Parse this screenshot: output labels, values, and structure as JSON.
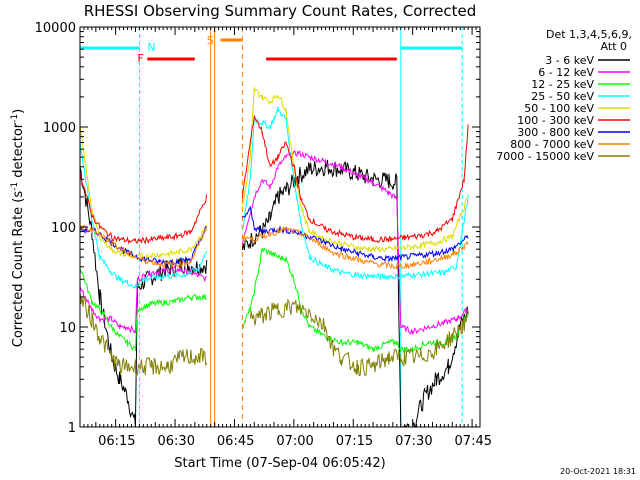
{
  "chart_data": {
    "type": "line",
    "title": "RHESSI Observing Summary Count Rates, Corrected",
    "xlabel": "Start Time (07-Sep-04 06:05:42)",
    "ylabel_main": "Corrected Count Rate (s",
    "ylabel_exp1": "-1",
    "ylabel_mid": " detector",
    "ylabel_exp2": "-1",
    "ylabel_end": ")",
    "y_scale": "log",
    "ylim": [
      1,
      10000
    ],
    "xlim_minutes": [
      0,
      101
    ],
    "x_ticks": [
      {
        "m": 9.3,
        "label": "06:15"
      },
      {
        "m": 24.3,
        "label": "06:30"
      },
      {
        "m": 39.3,
        "label": "06:45"
      },
      {
        "m": 54.3,
        "label": "07:00"
      },
      {
        "m": 69.3,
        "label": "07:15"
      },
      {
        "m": 84.3,
        "label": "07:30"
      },
      {
        "m": 99.3,
        "label": "07:45"
      }
    ],
    "y_ticks": [
      {
        "v": 1,
        "label": "1"
      },
      {
        "v": 10,
        "label": "10"
      },
      {
        "v": 100,
        "label": "100"
      },
      {
        "v": 1000,
        "label": "1000"
      },
      {
        "v": 10000,
        "label": "10000"
      }
    ],
    "legend": {
      "header1": "Det 1,3,4,5,6,9,",
      "header2": "Att 0",
      "position": "right"
    },
    "series": [
      {
        "name": "3 - 6 keV",
        "color": "#000000",
        "points": [
          [
            0,
            400
          ],
          [
            3,
            90
          ],
          [
            5,
            20
          ],
          [
            8,
            5
          ],
          [
            10,
            3
          ],
          [
            12,
            2
          ],
          [
            14,
            1
          ],
          [
            14.5,
            25
          ],
          [
            17,
            30
          ],
          [
            22,
            38
          ],
          [
            26,
            42
          ],
          [
            30,
            40
          ],
          [
            32,
            42
          ],
          [
            33,
            null
          ],
          [
            41,
            null
          ],
          [
            41,
            60
          ],
          [
            44,
            80
          ],
          [
            46,
            90
          ],
          [
            48,
            120
          ],
          [
            50,
            200
          ],
          [
            52,
            230
          ],
          [
            55,
            320
          ],
          [
            58,
            380
          ],
          [
            62,
            400
          ],
          [
            66,
            380
          ],
          [
            70,
            340
          ],
          [
            74,
            300
          ],
          [
            78,
            290
          ],
          [
            80,
            280
          ],
          [
            81,
            1
          ],
          [
            84,
            1
          ],
          [
            87,
            2
          ],
          [
            90,
            3
          ],
          [
            93,
            4
          ],
          [
            96,
            10
          ],
          [
            98,
            15
          ]
        ]
      },
      {
        "name": "6 - 12 keV",
        "color": "#ff00ff",
        "points": [
          [
            0,
            25
          ],
          [
            3,
            15
          ],
          [
            5,
            12
          ],
          [
            8,
            12
          ],
          [
            10,
            10
          ],
          [
            12,
            10
          ],
          [
            14,
            9
          ],
          [
            14.5,
            30
          ],
          [
            18,
            35
          ],
          [
            24,
            38
          ],
          [
            28,
            35
          ],
          [
            32,
            30
          ],
          [
            33,
            null
          ],
          [
            41,
            null
          ],
          [
            41,
            70
          ],
          [
            44,
            200
          ],
          [
            46,
            300
          ],
          [
            48,
            250
          ],
          [
            50,
            400
          ],
          [
            52,
            500
          ],
          [
            55,
            550
          ],
          [
            58,
            500
          ],
          [
            62,
            450
          ],
          [
            66,
            400
          ],
          [
            70,
            330
          ],
          [
            74,
            280
          ],
          [
            78,
            220
          ],
          [
            80,
            190
          ],
          [
            81,
            10
          ],
          [
            84,
            9
          ],
          [
            88,
            10
          ],
          [
            92,
            11
          ],
          [
            95,
            12
          ],
          [
            98,
            15
          ]
        ]
      },
      {
        "name": "12 - 25 keV",
        "color": "#00ff00",
        "points": [
          [
            0,
            40
          ],
          [
            3,
            18
          ],
          [
            5,
            15
          ],
          [
            8,
            10
          ],
          [
            10,
            8
          ],
          [
            12,
            7
          ],
          [
            14,
            6
          ],
          [
            14.5,
            15
          ],
          [
            18,
            17
          ],
          [
            24,
            18
          ],
          [
            28,
            20
          ],
          [
            32,
            20
          ],
          [
            33,
            null
          ],
          [
            41,
            null
          ],
          [
            41,
            10
          ],
          [
            43,
            15
          ],
          [
            45,
            35
          ],
          [
            46,
            60
          ],
          [
            48,
            55
          ],
          [
            50,
            50
          ],
          [
            52,
            48
          ],
          [
            54,
            30
          ],
          [
            56,
            15
          ],
          [
            58,
            10
          ],
          [
            62,
            8
          ],
          [
            66,
            7
          ],
          [
            70,
            7
          ],
          [
            74,
            6
          ],
          [
            78,
            7
          ],
          [
            80,
            7
          ],
          [
            81,
            6
          ],
          [
            84,
            6
          ],
          [
            88,
            7
          ],
          [
            92,
            7
          ],
          [
            95,
            8
          ],
          [
            98,
            14
          ]
        ]
      },
      {
        "name": "25 - 50 keV",
        "color": "#00ffff",
        "points": [
          [
            0,
            700
          ],
          [
            3,
            120
          ],
          [
            5,
            50
          ],
          [
            8,
            35
          ],
          [
            10,
            30
          ],
          [
            12,
            28
          ],
          [
            14,
            25
          ],
          [
            16,
            30
          ],
          [
            20,
            32
          ],
          [
            26,
            33
          ],
          [
            30,
            38
          ],
          [
            32,
            60
          ],
          [
            33,
            null
          ],
          [
            41,
            null
          ],
          [
            41,
            90
          ],
          [
            43,
            300
          ],
          [
            44,
            1200
          ],
          [
            46,
            1100
          ],
          [
            48,
            1000
          ],
          [
            50,
            1500
          ],
          [
            52,
            1200
          ],
          [
            54,
            300
          ],
          [
            56,
            100
          ],
          [
            58,
            50
          ],
          [
            62,
            40
          ],
          [
            66,
            35
          ],
          [
            70,
            33
          ],
          [
            74,
            32
          ],
          [
            78,
            32
          ],
          [
            80,
            32
          ],
          [
            84,
            33
          ],
          [
            88,
            34
          ],
          [
            92,
            35
          ],
          [
            95,
            40
          ],
          [
            98,
            200
          ]
        ]
      },
      {
        "name": "50 - 100 keV",
        "color": "#dddd00",
        "points": [
          [
            0,
            1000
          ],
          [
            3,
            150
          ],
          [
            5,
            80
          ],
          [
            8,
            60
          ],
          [
            10,
            55
          ],
          [
            14,
            50
          ],
          [
            18,
            52
          ],
          [
            24,
            55
          ],
          [
            28,
            60
          ],
          [
            32,
            100
          ],
          [
            33,
            null
          ],
          [
            41,
            null
          ],
          [
            41,
            150
          ],
          [
            43,
            500
          ],
          [
            44,
            2400
          ],
          [
            46,
            2000
          ],
          [
            48,
            1800
          ],
          [
            50,
            2100
          ],
          [
            52,
            1500
          ],
          [
            54,
            400
          ],
          [
            56,
            150
          ],
          [
            58,
            90
          ],
          [
            62,
            75
          ],
          [
            66,
            68
          ],
          [
            70,
            62
          ],
          [
            74,
            60
          ],
          [
            78,
            60
          ],
          [
            82,
            62
          ],
          [
            86,
            65
          ],
          [
            90,
            70
          ],
          [
            94,
            80
          ],
          [
            98,
            200
          ]
        ]
      },
      {
        "name": "100 - 300 keV",
        "color": "#ff0000",
        "points": [
          [
            0,
            350
          ],
          [
            3,
            130
          ],
          [
            5,
            100
          ],
          [
            8,
            80
          ],
          [
            10,
            75
          ],
          [
            14,
            72
          ],
          [
            18,
            75
          ],
          [
            24,
            80
          ],
          [
            28,
            90
          ],
          [
            32,
            200
          ],
          [
            33,
            null
          ],
          [
            41,
            null
          ],
          [
            41,
            200
          ],
          [
            43,
            700
          ],
          [
            44,
            1300
          ],
          [
            46,
            900
          ],
          [
            48,
            400
          ],
          [
            50,
            500
          ],
          [
            52,
            700
          ],
          [
            54,
            400
          ],
          [
            56,
            180
          ],
          [
            58,
            120
          ],
          [
            62,
            95
          ],
          [
            66,
            85
          ],
          [
            70,
            78
          ],
          [
            74,
            75
          ],
          [
            78,
            75
          ],
          [
            82,
            78
          ],
          [
            86,
            82
          ],
          [
            90,
            90
          ],
          [
            94,
            120
          ],
          [
            97,
            300
          ],
          [
            98,
            1000
          ]
        ]
      },
      {
        "name": "300 - 800 keV",
        "color": "#0000ff",
        "points": [
          [
            0,
            95
          ],
          [
            4,
            90
          ],
          [
            8,
            70
          ],
          [
            12,
            55
          ],
          [
            16,
            48
          ],
          [
            20,
            45
          ],
          [
            24,
            45
          ],
          [
            28,
            48
          ],
          [
            32,
            100
          ],
          [
            33,
            null
          ],
          [
            41,
            null
          ],
          [
            41,
            120
          ],
          [
            43,
            150
          ],
          [
            44,
            100
          ],
          [
            46,
            90
          ],
          [
            50,
            95
          ],
          [
            54,
            90
          ],
          [
            58,
            80
          ],
          [
            62,
            70
          ],
          [
            66,
            60
          ],
          [
            70,
            55
          ],
          [
            74,
            50
          ],
          [
            78,
            48
          ],
          [
            82,
            50
          ],
          [
            86,
            52
          ],
          [
            90,
            55
          ],
          [
            94,
            60
          ],
          [
            98,
            80
          ]
        ]
      },
      {
        "name": "800 - 7000 keV",
        "color": "#ff8000",
        "points": [
          [
            0,
            100
          ],
          [
            4,
            90
          ],
          [
            8,
            70
          ],
          [
            12,
            55
          ],
          [
            16,
            47
          ],
          [
            20,
            43
          ],
          [
            24,
            42
          ],
          [
            28,
            45
          ],
          [
            32,
            100
          ],
          [
            33,
            null
          ],
          [
            41,
            null
          ],
          [
            41,
            80
          ],
          [
            44,
            75
          ],
          [
            48,
            85
          ],
          [
            52,
            95
          ],
          [
            56,
            85
          ],
          [
            60,
            70
          ],
          [
            64,
            55
          ],
          [
            68,
            50
          ],
          [
            72,
            45
          ],
          [
            76,
            42
          ],
          [
            80,
            40
          ],
          [
            84,
            42
          ],
          [
            88,
            45
          ],
          [
            92,
            50
          ],
          [
            95,
            55
          ],
          [
            98,
            70
          ]
        ]
      },
      {
        "name": "7000 - 15000 keV",
        "color": "#808000",
        "points": [
          [
            0,
            20
          ],
          [
            3,
            12
          ],
          [
            5,
            8
          ],
          [
            8,
            5
          ],
          [
            10,
            4
          ],
          [
            14,
            4
          ],
          [
            18,
            4
          ],
          [
            22,
            4
          ],
          [
            26,
            5
          ],
          [
            32,
            5
          ],
          [
            33,
            null
          ],
          [
            41,
            null
          ],
          [
            41,
            null
          ],
          [
            43,
            12
          ],
          [
            46,
            13
          ],
          [
            50,
            15
          ],
          [
            54,
            16
          ],
          [
            58,
            14
          ],
          [
            62,
            10
          ],
          [
            64,
            6
          ],
          [
            66,
            5
          ],
          [
            70,
            4
          ],
          [
            74,
            4
          ],
          [
            78,
            5
          ],
          [
            82,
            5
          ],
          [
            86,
            5
          ],
          [
            90,
            6
          ],
          [
            94,
            8
          ],
          [
            98,
            12
          ]
        ]
      }
    ],
    "markers": [
      {
        "label": "N",
        "color": "#00ffff",
        "m": 16
      },
      {
        "label": "F",
        "color": "#ff0000",
        "m": 16
      },
      {
        "label": "S",
        "color": "#ff8000",
        "m": 33
      }
    ]
  },
  "timestamp": "20-Oct-2021 18:31"
}
